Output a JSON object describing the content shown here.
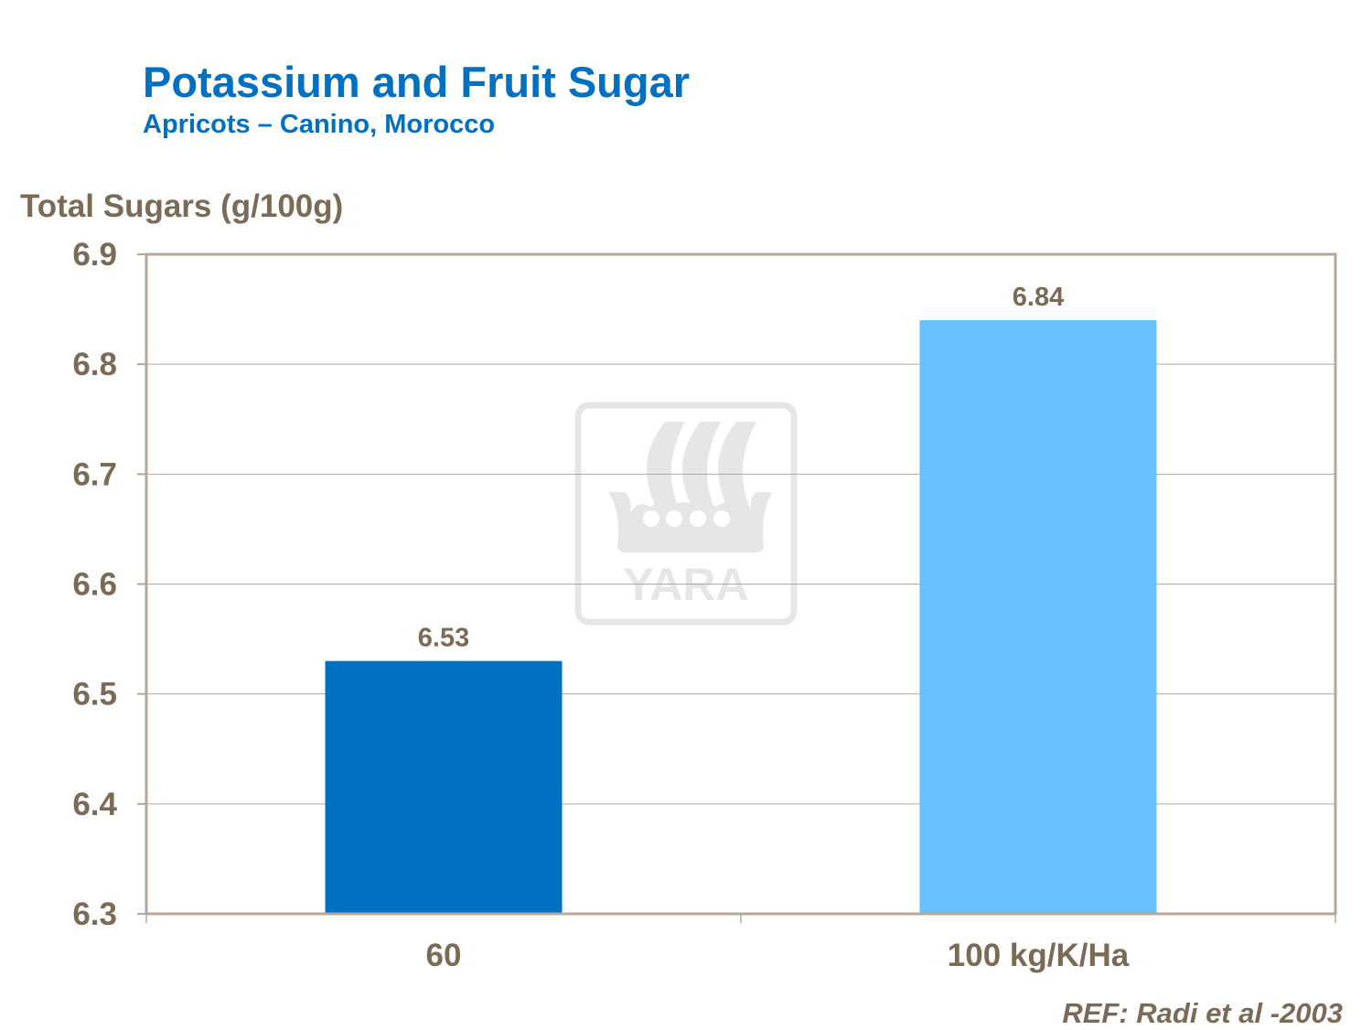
{
  "title": "Potassium and Fruit Sugar",
  "subtitle": "Apricots – Canino, Morocco",
  "reference": "REF:  Radi et al -2003",
  "watermark": {
    "text": "YARA",
    "icon": "yara-viking-ship-logo"
  },
  "chart_data": {
    "type": "bar",
    "title": "Potassium and Fruit Sugar",
    "subtitle": "Apricots – Canino, Morocco",
    "ylabel": "Total Sugars (g/100g)",
    "xlabel": "",
    "categories": [
      "60",
      "100 kg/K/Ha"
    ],
    "values": [
      6.53,
      6.84
    ],
    "data_labels": [
      "6.53",
      "6.84"
    ],
    "colors": [
      "#0070c0",
      "#6abfff"
    ],
    "ylim": [
      6.3,
      6.9
    ],
    "yticks": [
      "6.3",
      "6.4",
      "6.5",
      "6.6",
      "6.7",
      "6.8",
      "6.9"
    ],
    "grid": true,
    "legend": "none",
    "text_color": "#7b6a55",
    "axis_color": "#b5a899"
  }
}
